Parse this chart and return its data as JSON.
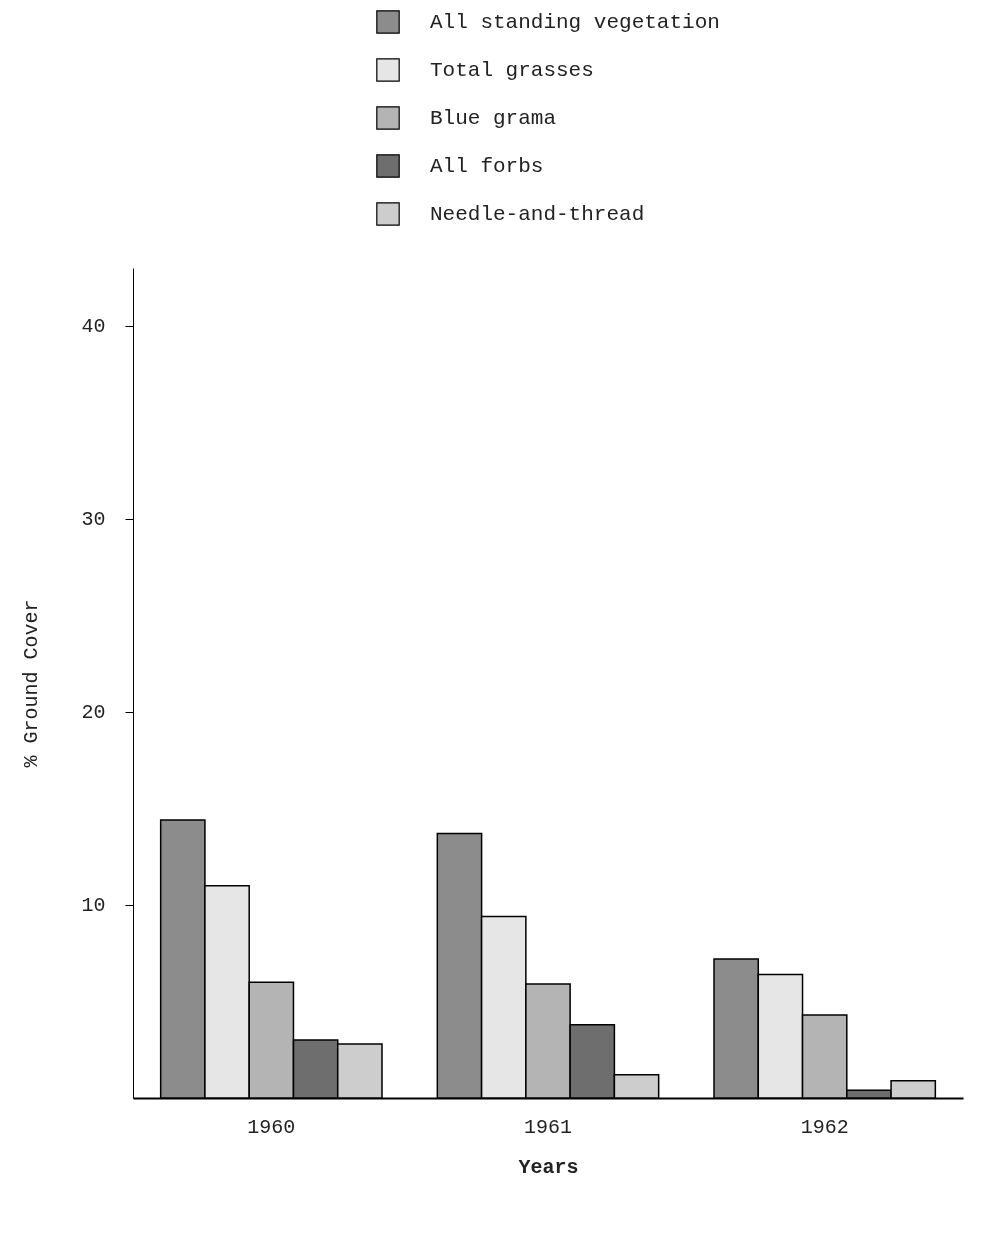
{
  "chart_data": {
    "type": "bar",
    "xlabel": "Years",
    "ylabel": "% Ground Cover",
    "categories": [
      "1960",
      "1961",
      "1962"
    ],
    "series": [
      {
        "name": "All standing vegetation",
        "color": "#8c8c8c",
        "values": [
          14.4,
          13.7,
          7.2
        ]
      },
      {
        "name": "Total grasses",
        "color": "#e6e6e6",
        "values": [
          11.0,
          9.4,
          6.4
        ]
      },
      {
        "name": "Blue grama",
        "color": "#b4b4b4",
        "values": [
          6.0,
          5.9,
          4.3
        ]
      },
      {
        "name": "All forbs",
        "color": "#6e6e6e",
        "values": [
          3.0,
          3.8,
          0.4
        ]
      },
      {
        "name": "Needle-and-thread",
        "color": "#cdcdcd",
        "values": [
          2.8,
          1.2,
          0.9
        ]
      }
    ],
    "ylim": [
      0,
      43
    ],
    "yticks": [
      10,
      20,
      30,
      40
    ],
    "grid": false,
    "legend": "top"
  }
}
